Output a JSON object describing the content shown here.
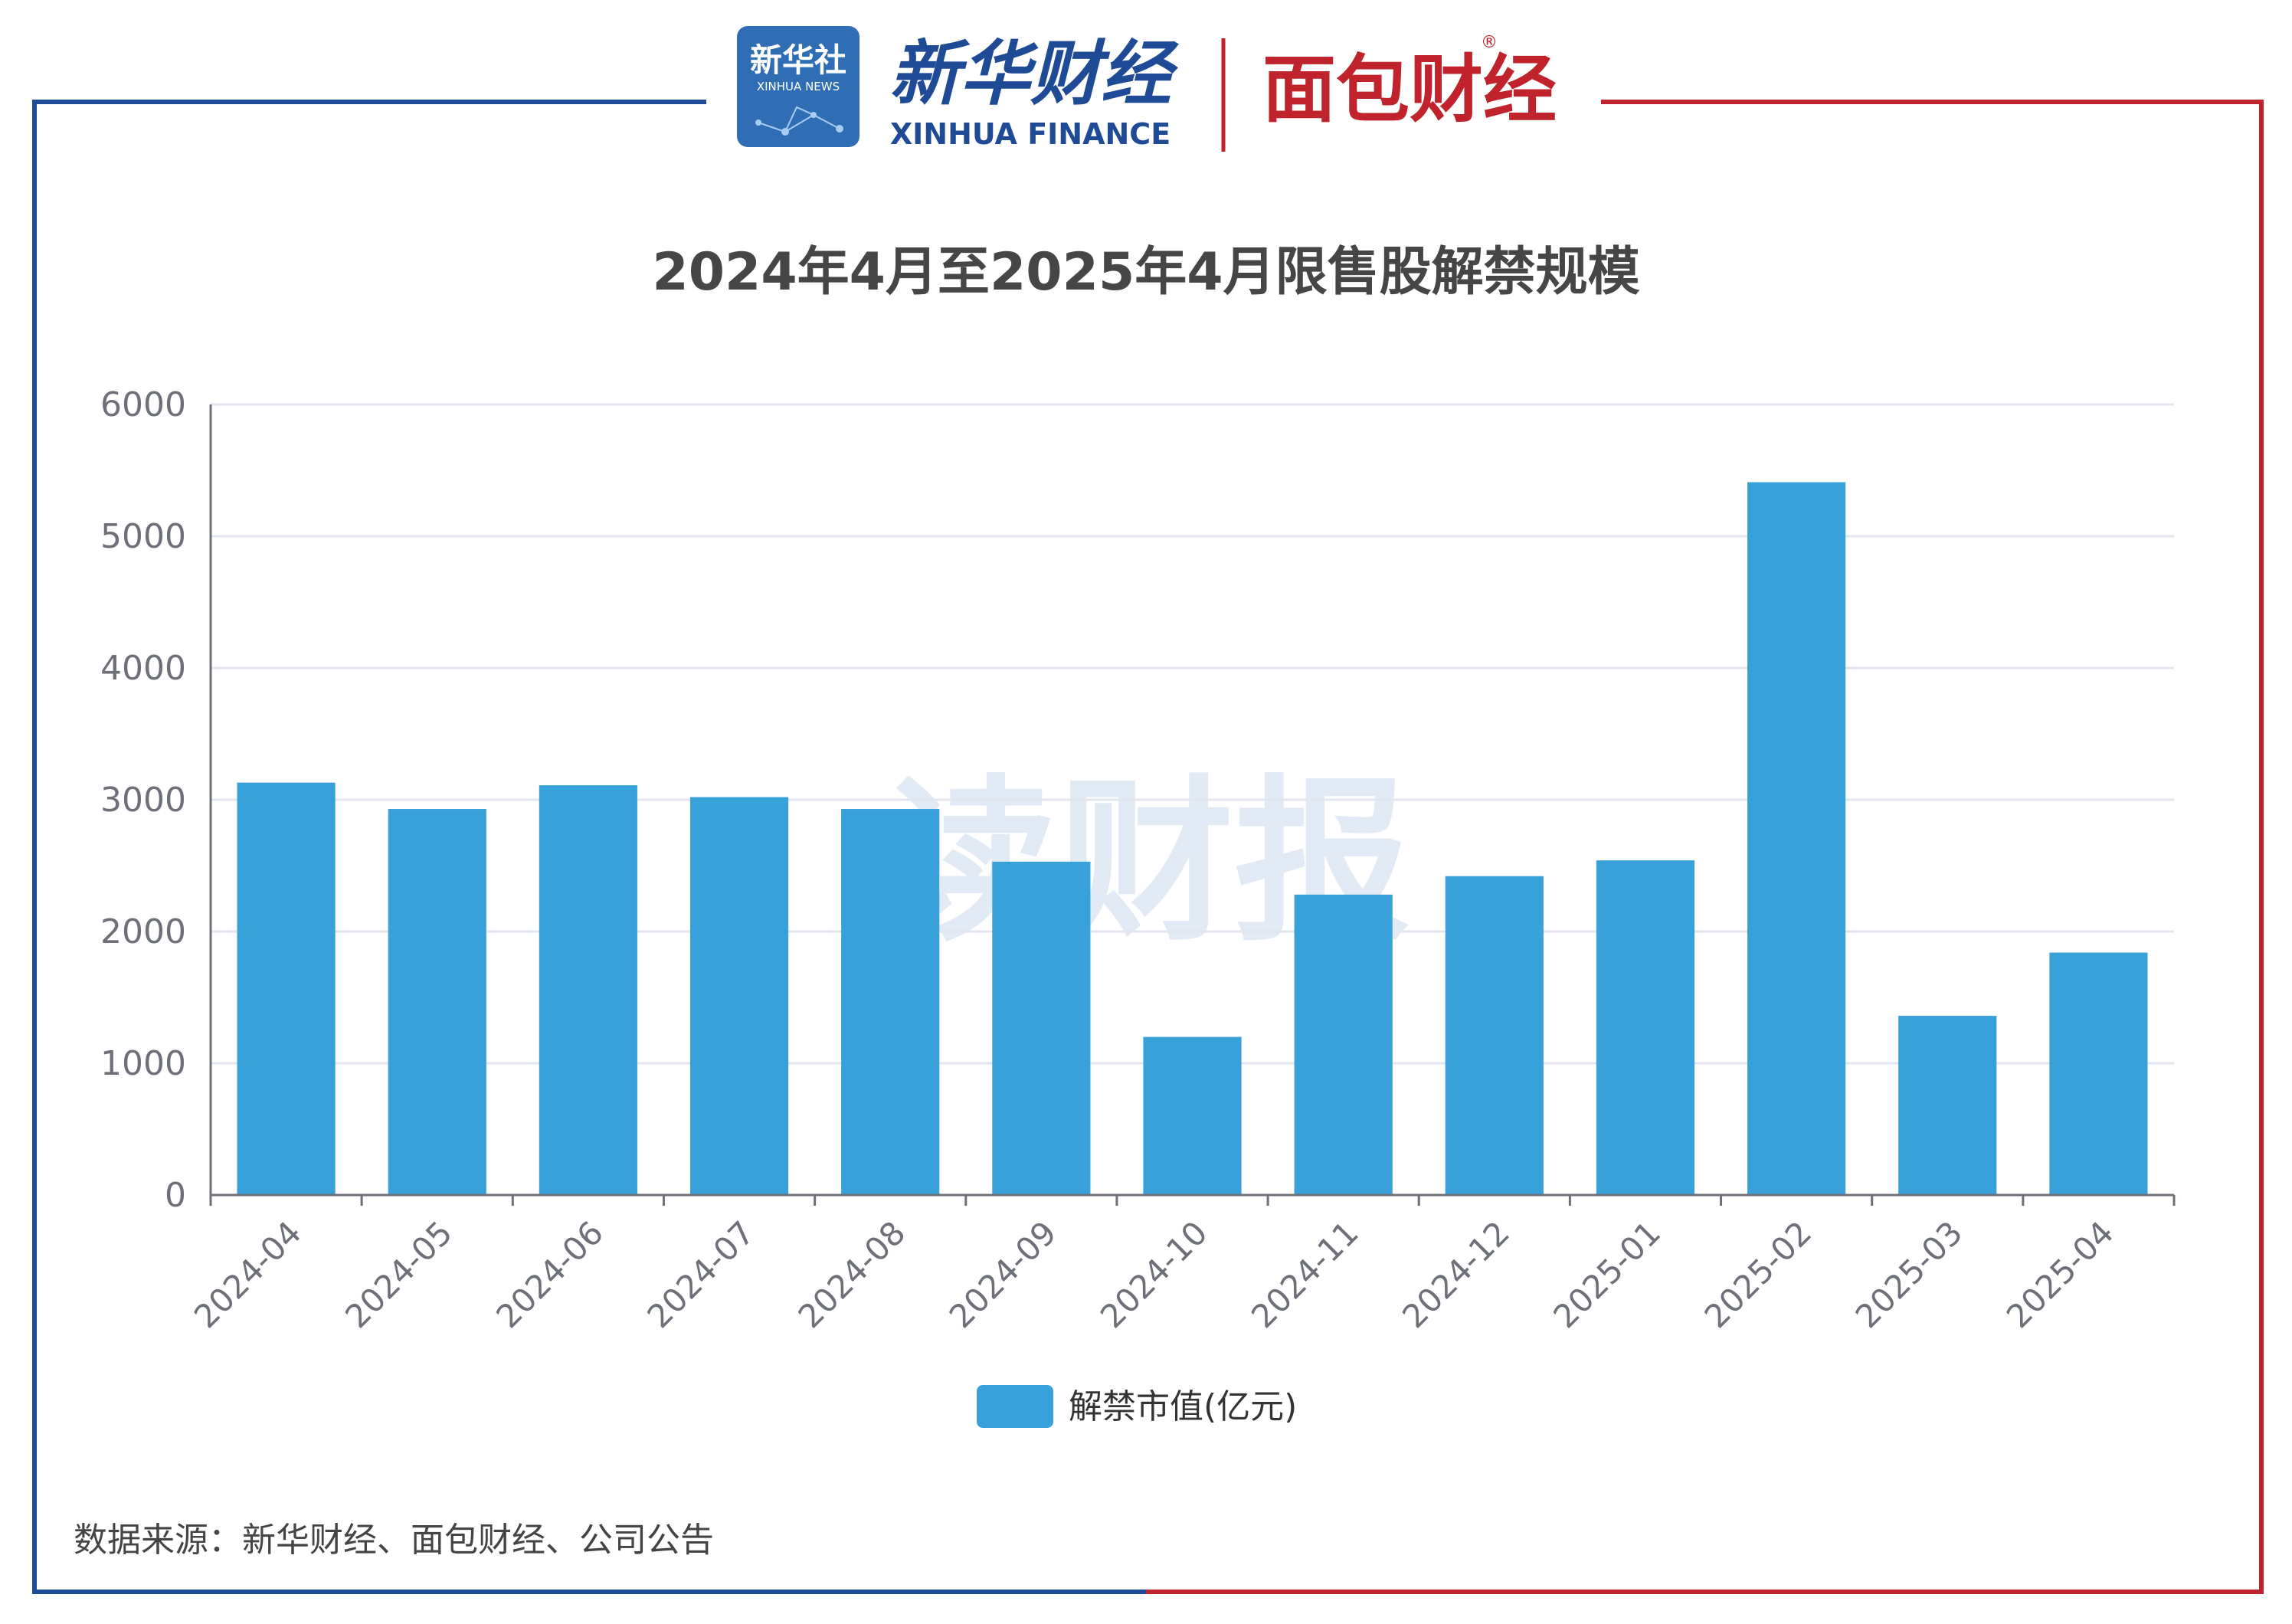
{
  "header": {
    "xinhua_badge_cn": "新华社",
    "xinhua_badge_en": "XINHUA NEWS",
    "xinhua_finance_cn": "新华财经",
    "xinhua_finance_en": "XINHUA FINANCE",
    "mianbao_logo": "面包财经",
    "registered_mark": "®"
  },
  "watermark": "读财报",
  "source": "数据来源：新华财经、面包财经、公司公告",
  "colors": {
    "bar": "#38a1da",
    "frame_left": "#1f4b96",
    "frame_right": "#c0232b",
    "grid": "#e3e6ef",
    "axis": "#6e7079",
    "title": "#464646",
    "watermark": "#c9d8ec"
  },
  "chart_data": {
    "type": "bar",
    "title": "2024年4月至2025年4月限售股解禁规模",
    "categories": [
      "2024-04",
      "2024-05",
      "2024-06",
      "2024-07",
      "2024-08",
      "2024-09",
      "2024-10",
      "2024-11",
      "2024-12",
      "2025-01",
      "2025-02",
      "2025-03",
      "2025-04"
    ],
    "series": [
      {
        "name": "解禁市值(亿元)",
        "values": [
          3130,
          2930,
          3110,
          3020,
          2930,
          2530,
          1200,
          2280,
          2420,
          2540,
          5410,
          1360,
          1840
        ]
      }
    ],
    "yticks": [
      "0",
      "1000",
      "2000",
      "3000",
      "4000",
      "5000",
      "6000"
    ],
    "ylim": [
      0,
      6000
    ],
    "grid": true,
    "legend": "bottom-center"
  }
}
